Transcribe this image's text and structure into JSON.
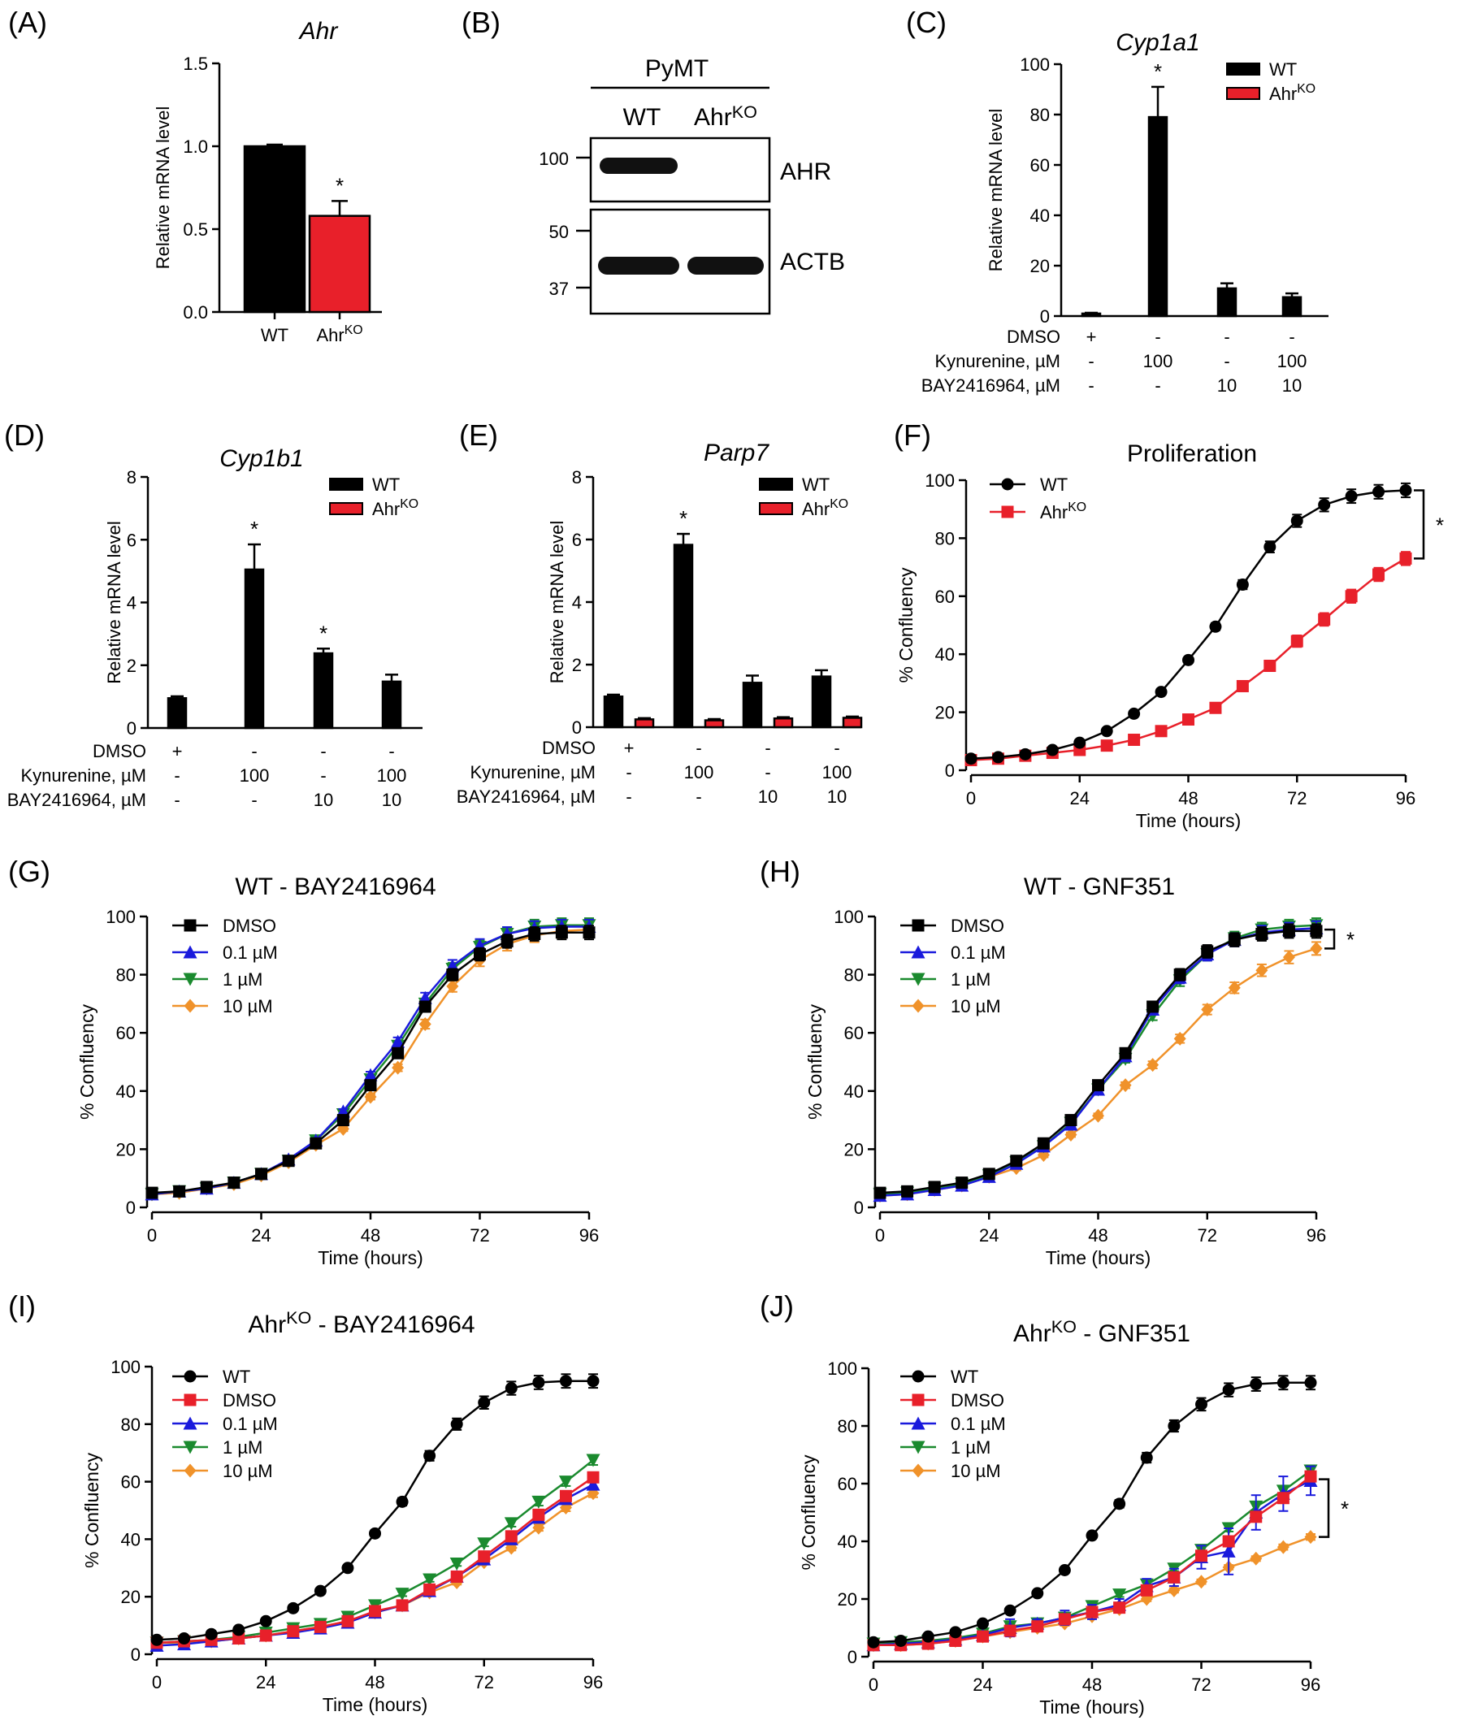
{
  "chart_data": [
    {
      "id": "A",
      "panel": "(A)",
      "type": "bar",
      "title": "Ahr",
      "title_italic": true,
      "ylabel": "Relative mRNA level",
      "ylim": [
        0,
        1.5
      ],
      "yticks": [
        "0.0",
        "0.5",
        "1.0",
        "1.5"
      ],
      "categories": [
        {
          "base": "WT",
          "sup": ""
        },
        {
          "base": "Ahr",
          "sup": "KO"
        }
      ],
      "values": [
        1.0,
        0.58
      ],
      "errors": [
        0.01,
        0.09
      ],
      "colors": [
        "#000000",
        "#e8202a"
      ],
      "annotations": [
        "",
        "*"
      ]
    },
    {
      "id": "B",
      "panel": "(B)",
      "type": "western-blot",
      "header": "PyMT",
      "lanes": [
        {
          "base": "WT",
          "sup": ""
        },
        {
          "base": "Ahr",
          "sup": "KO"
        }
      ],
      "markers": [
        "100",
        "50",
        "37"
      ],
      "labels": [
        "AHR",
        "ACTB"
      ]
    },
    {
      "id": "C",
      "panel": "(C)",
      "type": "bar",
      "title": "Cyp1a1",
      "title_italic": true,
      "ylabel": "Relative mRNA level",
      "ylim": [
        0,
        100
      ],
      "yticks": [
        "0",
        "20",
        "40",
        "60",
        "80",
        "100"
      ],
      "legend": [
        {
          "base": "WT",
          "sup": "",
          "color": "#000000"
        },
        {
          "base": "Ahr",
          "sup": "KO",
          "color": "#e8202a"
        }
      ],
      "groups": 4,
      "series": [
        {
          "name": "WT",
          "color": "#000000",
          "values": [
            1.0,
            79,
            11,
            7.5
          ],
          "errors": [
            0.3,
            12,
            2,
            1.5
          ]
        },
        {
          "name": "AhrKO",
          "color": "#e8202a",
          "values": [
            0,
            0,
            0,
            0
          ],
          "errors": [
            0,
            0,
            0,
            0
          ]
        }
      ],
      "annotations": [
        {
          "group": 1,
          "text": "*"
        }
      ],
      "conditions": [
        {
          "label": "DMSO",
          "values": [
            "+",
            "-",
            "-",
            "-"
          ]
        },
        {
          "label": "Kynurenine, µM",
          "values": [
            "-",
            "100",
            "-",
            "100"
          ]
        },
        {
          "label": "BAY2416964, µM",
          "values": [
            "-",
            "-",
            "10",
            "10"
          ]
        }
      ]
    },
    {
      "id": "D",
      "panel": "(D)",
      "type": "bar",
      "title": "Cyp1b1",
      "title_italic": true,
      "ylabel": "Relative mRNA level",
      "ylim": [
        0,
        8
      ],
      "yticks": [
        "0",
        "2",
        "4",
        "6",
        "8"
      ],
      "legend": [
        {
          "base": "WT",
          "sup": "",
          "color": "#000000"
        },
        {
          "base": "Ahr",
          "sup": "KO",
          "color": "#e8202a"
        }
      ],
      "groups": 4,
      "series": [
        {
          "name": "WT",
          "color": "#000000",
          "values": [
            0.95,
            5.05,
            2.38,
            1.48
          ],
          "errors": [
            0.06,
            0.8,
            0.15,
            0.22
          ]
        },
        {
          "name": "AhrKO",
          "color": "#e8202a",
          "values": [
            0,
            0,
            0,
            0
          ],
          "errors": [
            0,
            0,
            0,
            0
          ]
        }
      ],
      "annotations": [
        {
          "group": 1,
          "text": "*"
        },
        {
          "group": 2,
          "text": "*"
        }
      ],
      "conditions": [
        {
          "label": "DMSO",
          "values": [
            "+",
            "-",
            "-",
            "-"
          ]
        },
        {
          "label": "Kynurenine, µM",
          "values": [
            "-",
            "100",
            "-",
            "100"
          ]
        },
        {
          "label": "BAY2416964, µM",
          "values": [
            "-",
            "-",
            "10",
            "10"
          ]
        }
      ]
    },
    {
      "id": "E",
      "panel": "(E)",
      "type": "bar",
      "title": "Parp7",
      "title_italic": true,
      "ylabel": "Relative mRNA level",
      "ylim": [
        0,
        8
      ],
      "yticks": [
        "0",
        "2",
        "4",
        "6",
        "8"
      ],
      "legend": [
        {
          "base": "WT",
          "sup": "",
          "color": "#000000"
        },
        {
          "base": "Ahr",
          "sup": "KO",
          "color": "#e8202a"
        }
      ],
      "groups": 4,
      "series": [
        {
          "name": "WT",
          "color": "#000000",
          "values": [
            0.98,
            5.83,
            1.42,
            1.62
          ],
          "errors": [
            0.06,
            0.35,
            0.23,
            0.2
          ]
        },
        {
          "name": "AhrKO",
          "color": "#e8202a",
          "values": [
            0.25,
            0.22,
            0.28,
            0.3
          ],
          "errors": [
            0.04,
            0.04,
            0.04,
            0.04
          ]
        }
      ],
      "annotations": [
        {
          "group": 1,
          "text": "*"
        }
      ],
      "conditions": [
        {
          "label": "DMSO",
          "values": [
            "+",
            "-",
            "-",
            "-"
          ]
        },
        {
          "label": "Kynurenine, µM",
          "values": [
            "-",
            "100",
            "-",
            "100"
          ]
        },
        {
          "label": "BAY2416964, µM",
          "values": [
            "-",
            "-",
            "10",
            "10"
          ]
        }
      ]
    },
    {
      "id": "F",
      "panel": "(F)",
      "type": "line",
      "title": "Proliferation",
      "title_italic": false,
      "xlabel": "Time (hours)",
      "ylabel": "% Confluency",
      "xlim": [
        0,
        96
      ],
      "ylim": [
        0,
        100
      ],
      "xticks": [
        0,
        24,
        48,
        72,
        96
      ],
      "yticks": [
        0,
        20,
        40,
        60,
        80,
        100
      ],
      "x": [
        0,
        6,
        12,
        18,
        24,
        30,
        36,
        42,
        48,
        54,
        60,
        66,
        72,
        78,
        84,
        90,
        96
      ],
      "series": [
        {
          "name": "WT",
          "sup": "",
          "color": "#000000",
          "marker": "circle",
          "values": [
            4,
            4.5,
            5.5,
            7,
            9.5,
            13.5,
            19.5,
            27,
            38,
            49.5,
            64,
            77,
            86,
            91.5,
            94.5,
            96,
            96.5
          ]
        },
        {
          "name": "Ahr",
          "sup": "KO",
          "color": "#e8202a",
          "marker": "square",
          "values": [
            3.5,
            4,
            5,
            6,
            7,
            8.5,
            10.5,
            13.5,
            17.5,
            21.5,
            29,
            36,
            44.5,
            52,
            60,
            67.5,
            73
          ],
          "errors": [
            0.5,
            0.5,
            0.5,
            0.5,
            0.5,
            0.7,
            0.8,
            1,
            1.2,
            1.3,
            1.5,
            1.8,
            2,
            2.2,
            2.3,
            2.3,
            2.3
          ]
        }
      ],
      "bracket": {
        "y1": 96.5,
        "y2": 73,
        "text": "*"
      }
    },
    {
      "id": "G",
      "panel": "(G)",
      "type": "line",
      "title": "WT - BAY2416964",
      "title_italic": false,
      "xlabel": "Time (hours)",
      "ylabel": "% Confluency",
      "xlim": [
        0,
        96
      ],
      "ylim": [
        0,
        100
      ],
      "xticks": [
        0,
        24,
        48,
        72,
        96
      ],
      "yticks": [
        0,
        20,
        40,
        60,
        80,
        100
      ],
      "x": [
        0,
        6,
        12,
        18,
        24,
        30,
        36,
        42,
        48,
        54,
        60,
        66,
        72,
        78,
        84,
        90,
        96
      ],
      "series": [
        {
          "name": "DMSO",
          "sup": "",
          "color": "#000000",
          "marker": "square",
          "values": [
            5,
            5.5,
            7,
            8.5,
            11.5,
            16,
            22,
            30,
            42,
            53,
            69,
            80,
            87,
            91.5,
            94,
            94.5,
            94.5
          ]
        },
        {
          "name": "0.1 µM",
          "sup": "",
          "color": "#1a1adc",
          "marker": "triangle-up",
          "values": [
            4.5,
            5.5,
            6.5,
            8.5,
            11.5,
            16.5,
            23,
            33,
            45.5,
            57,
            72,
            83,
            90,
            94,
            96,
            96.5,
            96.5
          ]
        },
        {
          "name": "1 µM",
          "sup": "",
          "color": "#1a8a2e",
          "marker": "triangle-down",
          "values": [
            4.5,
            5.5,
            6.5,
            8.5,
            11.5,
            16,
            23,
            32,
            44,
            55.5,
            70,
            82,
            89.5,
            94,
            96.5,
            97,
            97
          ]
        },
        {
          "name": "10 µM",
          "sup": "",
          "color": "#f0922a",
          "marker": "diamond",
          "values": [
            4.5,
            5,
            6.5,
            8,
            11,
            15.5,
            21.5,
            27,
            38,
            48,
            63,
            76,
            85,
            90.5,
            93.5,
            95,
            95.5
          ]
        }
      ]
    },
    {
      "id": "H",
      "panel": "(H)",
      "type": "line",
      "title": "WT - GNF351",
      "title_italic": false,
      "xlabel": "Time (hours)",
      "ylabel": "% Confluency",
      "xlim": [
        0,
        96
      ],
      "ylim": [
        0,
        100
      ],
      "xticks": [
        0,
        24,
        48,
        72,
        96
      ],
      "yticks": [
        0,
        20,
        40,
        60,
        80,
        100
      ],
      "x": [
        0,
        6,
        12,
        18,
        24,
        30,
        36,
        42,
        48,
        54,
        60,
        66,
        72,
        78,
        84,
        90,
        96
      ],
      "series": [
        {
          "name": "DMSO",
          "sup": "",
          "color": "#000000",
          "marker": "square",
          "values": [
            5,
            5.5,
            7,
            8.5,
            11.5,
            16,
            22,
            30,
            42,
            53,
            69,
            80,
            88,
            92,
            94,
            95,
            95
          ]
        },
        {
          "name": "0.1 µM",
          "sup": "",
          "color": "#1a1adc",
          "marker": "triangle-up",
          "values": [
            4,
            4.5,
            6,
            7.5,
            10.5,
            15,
            21,
            28.5,
            40.5,
            52,
            68,
            79,
            87,
            92,
            94.5,
            95.5,
            96
          ]
        },
        {
          "name": "1 µM",
          "sup": "",
          "color": "#1a8a2e",
          "marker": "triangle-down",
          "values": [
            4.5,
            5,
            6.5,
            8,
            11,
            15.5,
            21,
            29,
            40.5,
            51,
            66,
            78,
            87,
            92.5,
            95.5,
            96.5,
            97
          ]
        },
        {
          "name": "10 µM",
          "sup": "",
          "color": "#f0922a",
          "marker": "diamond",
          "values": [
            4,
            4.5,
            6,
            7.5,
            10.5,
            13.5,
            18,
            25,
            31.5,
            42,
            49,
            58,
            68,
            75.5,
            81.5,
            86,
            89
          ]
        }
      ],
      "bracket": {
        "y1": 95.5,
        "y2": 89,
        "text": "*"
      }
    },
    {
      "id": "I",
      "panel": "(I)",
      "type": "line",
      "title": "AhrKO - BAY2416964",
      "title_base": "Ahr",
      "title_sup": "KO",
      "title_rest": " - BAY2416964",
      "title_italic": false,
      "xlabel": "Time (hours)",
      "ylabel": "% Confluency",
      "xlim": [
        0,
        96
      ],
      "ylim": [
        0,
        100
      ],
      "xticks": [
        0,
        24,
        48,
        72,
        96
      ],
      "yticks": [
        0,
        20,
        40,
        60,
        80,
        100
      ],
      "x": [
        0,
        6,
        12,
        18,
        24,
        30,
        36,
        42,
        48,
        54,
        60,
        66,
        72,
        78,
        84,
        90,
        96
      ],
      "series": [
        {
          "name": "WT",
          "sup": "",
          "color": "#000000",
          "marker": "circle",
          "values": [
            5,
            5.5,
            7,
            8.5,
            11.5,
            16,
            22,
            30,
            42,
            53,
            69,
            80,
            87.5,
            92.5,
            94.5,
            95,
            95
          ]
        },
        {
          "name": "DMSO",
          "sup": "",
          "color": "#e8202a",
          "marker": "square",
          "values": [
            4,
            4.5,
            5,
            5.5,
            6.5,
            8,
            9.5,
            11.5,
            15,
            17,
            22.5,
            27,
            34,
            41,
            48.5,
            55,
            61.5
          ]
        },
        {
          "name": "0.1 µM",
          "sup": "",
          "color": "#1a1adc",
          "marker": "triangle-up",
          "values": [
            3,
            3.5,
            4.5,
            5.5,
            6.5,
            7.5,
            9,
            11,
            14.5,
            17,
            22,
            27,
            33,
            40,
            47.5,
            54,
            59
          ]
        },
        {
          "name": "1 µM",
          "sup": "",
          "color": "#1a8a2e",
          "marker": "triangle-down",
          "values": [
            4,
            4.5,
            5,
            6,
            7.5,
            9,
            10.5,
            13,
            17,
            21,
            26,
            31.5,
            38.5,
            45.5,
            53,
            60,
            67.5
          ]
        },
        {
          "name": "10 µM",
          "sup": "",
          "color": "#f0922a",
          "marker": "diamond",
          "values": [
            4,
            4,
            4.5,
            5.5,
            6.5,
            8,
            9.5,
            11.5,
            14.5,
            17,
            21.5,
            25,
            32,
            37,
            44,
            51,
            56
          ]
        }
      ]
    },
    {
      "id": "J",
      "panel": "(J)",
      "type": "line",
      "title": "AhrKO - GNF351",
      "title_base": "Ahr",
      "title_sup": "KO",
      "title_rest": " - GNF351",
      "title_italic": false,
      "xlabel": "Time (hours)",
      "ylabel": "% Confluency",
      "xlim": [
        0,
        96
      ],
      "ylim": [
        0,
        100
      ],
      "xticks": [
        0,
        24,
        48,
        72,
        96
      ],
      "yticks": [
        0,
        20,
        40,
        60,
        80,
        100
      ],
      "x": [
        0,
        6,
        12,
        18,
        24,
        30,
        36,
        42,
        48,
        54,
        60,
        66,
        72,
        78,
        84,
        90,
        96
      ],
      "series": [
        {
          "name": "WT",
          "sup": "",
          "color": "#000000",
          "marker": "circle",
          "values": [
            5,
            5.5,
            7,
            8.5,
            11.5,
            16,
            22,
            30,
            42,
            53,
            69,
            80,
            87.5,
            92.5,
            94.5,
            95,
            95
          ]
        },
        {
          "name": "DMSO",
          "sup": "",
          "color": "#e8202a",
          "marker": "square",
          "values": [
            4,
            4,
            4.5,
            5.5,
            7,
            9,
            10.5,
            13,
            15.5,
            17,
            23,
            27.5,
            35,
            40,
            48.5,
            55,
            62.5
          ]
        },
        {
          "name": "0.1 µM",
          "sup": "",
          "color": "#1a1adc",
          "marker": "triangle-up",
          "values": [
            4,
            4.5,
            5,
            6,
            7.5,
            10,
            11.5,
            13.5,
            15.5,
            18,
            24.5,
            27.5,
            34.5,
            36.5,
            50,
            56.5,
            61
          ]
        },
        {
          "name": "1 µM",
          "sup": "",
          "color": "#1a8a2e",
          "marker": "triangle-down",
          "values": [
            4.5,
            5,
            5.5,
            6.5,
            8,
            10.5,
            11.5,
            13.5,
            17.5,
            21.5,
            25,
            30.5,
            37,
            44.5,
            52,
            57.5,
            64.5
          ]
        },
        {
          "name": "10 µM",
          "sup": "",
          "color": "#f0922a",
          "marker": "diamond",
          "values": [
            4,
            4,
            4.5,
            5.5,
            7,
            8.5,
            10,
            11.5,
            14,
            16.5,
            20,
            23,
            26,
            31,
            34,
            38,
            41.5
          ]
        }
      ],
      "errors": {
        "0.1 µM": [
          0.5,
          0.5,
          0.5,
          0.5,
          0.7,
          3,
          1.5,
          2.5,
          2.5,
          2,
          2.5,
          3,
          4,
          8,
          6,
          6,
          5
        ]
      },
      "bracket": {
        "y1": 61.5,
        "y2": 41.5,
        "text": "*"
      }
    }
  ]
}
